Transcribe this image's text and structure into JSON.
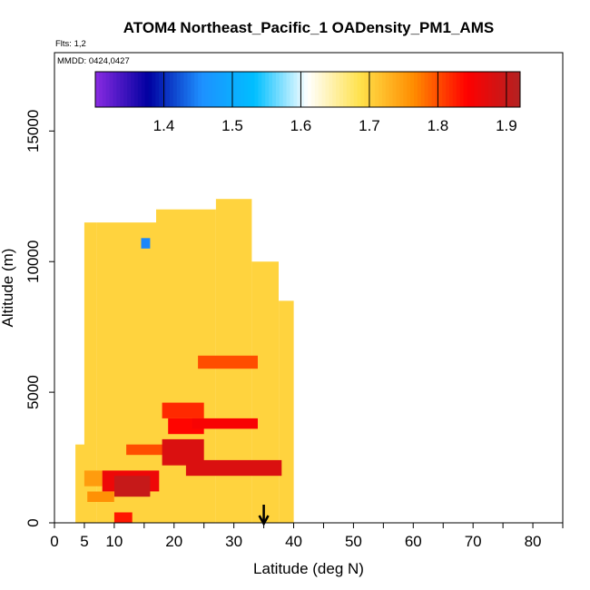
{
  "chart_data": {
    "type": "heatmap",
    "title": "ATOM4 Northeast_Pacific_1 OADensity_PM1_AMS",
    "flights_label": "Flts: 1,2",
    "date_label": "MMDD: 0424,0427",
    "xlabel": "Latitude (deg N)",
    "ylabel": "Altitude (m)",
    "xlim": [
      0,
      85
    ],
    "ylim": [
      0,
      18000
    ],
    "x_ticks": [
      "0",
      "5",
      "10",
      "20",
      "30",
      "40",
      "50",
      "60",
      "70",
      "80"
    ],
    "x_tick_values": [
      0,
      5,
      10,
      20,
      30,
      40,
      50,
      60,
      70,
      80
    ],
    "y_ticks": [
      "0",
      "5000",
      "10000",
      "15000"
    ],
    "y_tick_values": [
      0,
      5000,
      10000,
      15000
    ],
    "colorbar": {
      "range": [
        1.3,
        1.92
      ],
      "ticks": [
        "1.4",
        "1.5",
        "1.6",
        "1.7",
        "1.8",
        "1.9"
      ],
      "tick_values": [
        1.4,
        1.5,
        1.6,
        1.7,
        1.8,
        1.9
      ],
      "colors": [
        "#8a2be2",
        "#0000a0",
        "#1e90ff",
        "#00bfff",
        "#ffffff",
        "#ffe14a",
        "#ff8c00",
        "#ff0000",
        "#b22222"
      ]
    },
    "marker": {
      "latitude": 35,
      "symbol": "arrow-down"
    },
    "base_value": 1.7,
    "cells": [
      {
        "x0": 3.5,
        "x1": 5,
        "y0": 0,
        "y1": 3000,
        "v": 1.7
      },
      {
        "x0": 5,
        "x1": 7,
        "y0": 0,
        "y1": 11500,
        "v": 1.7
      },
      {
        "x0": 7,
        "x1": 17,
        "y0": 0,
        "y1": 11500,
        "v": 1.7
      },
      {
        "x0": 17,
        "x1": 23,
        "y0": 0,
        "y1": 12000,
        "v": 1.7
      },
      {
        "x0": 23,
        "x1": 27,
        "y0": 0,
        "y1": 12000,
        "v": 1.7
      },
      {
        "x0": 27,
        "x1": 33,
        "y0": 0,
        "y1": 12400,
        "v": 1.7
      },
      {
        "x0": 33,
        "x1": 37.5,
        "y0": 0,
        "y1": 10000,
        "v": 1.7
      },
      {
        "x0": 37.5,
        "x1": 40,
        "y0": 0,
        "y1": 8500,
        "v": 1.7
      },
      {
        "x0": 5,
        "x1": 8,
        "y0": 1400,
        "y1": 2000,
        "v": 1.75
      },
      {
        "x0": 8,
        "x1": 17.5,
        "y0": 1200,
        "y1": 2000,
        "v": 1.86
      },
      {
        "x0": 10,
        "x1": 16,
        "y0": 1000,
        "y1": 1800,
        "v": 1.9
      },
      {
        "x0": 5.5,
        "x1": 10,
        "y0": 800,
        "y1": 1200,
        "v": 1.76
      },
      {
        "x0": 10,
        "x1": 13,
        "y0": 0,
        "y1": 400,
        "v": 1.83
      },
      {
        "x0": 12,
        "x1": 21,
        "y0": 2600,
        "y1": 3000,
        "v": 1.8
      },
      {
        "x0": 18,
        "x1": 25,
        "y0": 2200,
        "y1": 3200,
        "v": 1.88
      },
      {
        "x0": 18,
        "x1": 25,
        "y0": 4000,
        "y1": 4600,
        "v": 1.82
      },
      {
        "x0": 19,
        "x1": 25,
        "y0": 3400,
        "y1": 4000,
        "v": 1.84
      },
      {
        "x0": 22,
        "x1": 38,
        "y0": 1800,
        "y1": 2400,
        "v": 1.88
      },
      {
        "x0": 23,
        "x1": 34,
        "y0": 3600,
        "y1": 4000,
        "v": 1.85
      },
      {
        "x0": 24,
        "x1": 34,
        "y0": 5900,
        "y1": 6400,
        "v": 1.8
      },
      {
        "x0": 14.5,
        "x1": 16,
        "y0": 10500,
        "y1": 10900,
        "v": 1.45
      }
    ]
  }
}
